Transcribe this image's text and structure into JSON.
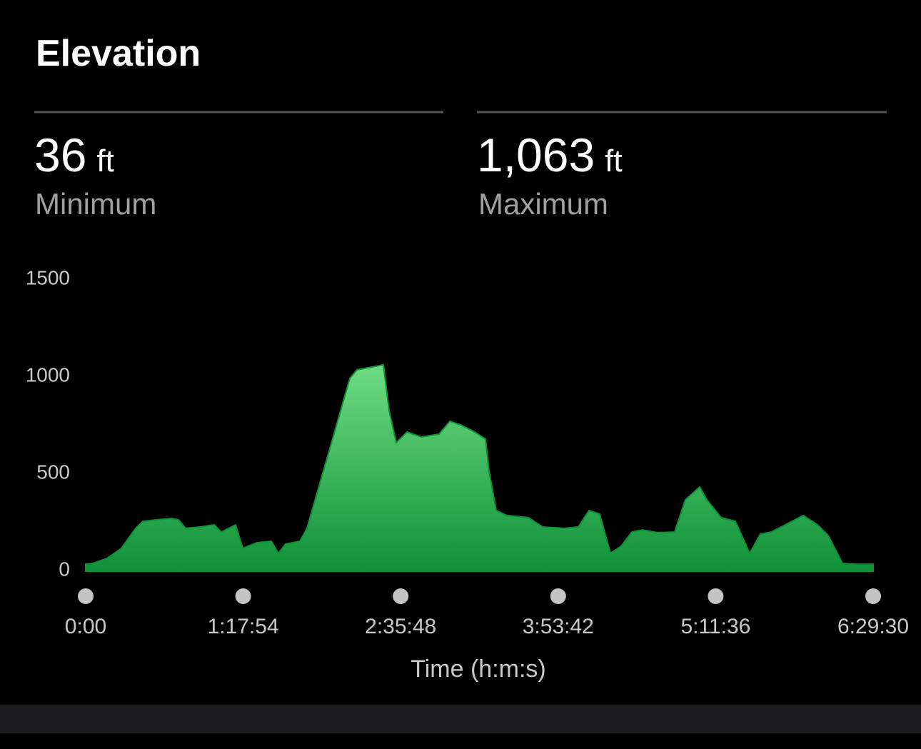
{
  "header": {
    "title": "Elevation"
  },
  "stats": [
    {
      "value": "36",
      "unit": "ft",
      "label": "Minimum"
    },
    {
      "value": "1,063",
      "unit": "ft",
      "label": "Maximum"
    }
  ],
  "chart_data": {
    "type": "area",
    "x_label": "Time (h:m:s)",
    "color_top": "#6fdc82",
    "color_bottom": "#0f9139",
    "x": [
      0,
      212,
      636,
      1059,
      1483,
      1695,
      2119,
      2543,
      2754,
      2966,
      3390,
      3814,
      4026,
      4449,
      4661,
      5085,
      5509,
      5721,
      5933,
      6356,
      6568,
      6992,
      7416,
      7840,
      8051,
      8835,
      9005,
      9217,
      9535,
      9958,
      10488,
      10806,
      11124,
      11547,
      11865,
      11971,
      12183,
      12501,
      13137,
      13560,
      14196,
      14620,
      14938,
      15255,
      15573,
      15891,
      16209,
      16527,
      16950,
      17480,
      17798,
      18222,
      18434,
      18857,
      19281,
      19705,
      20023,
      20340,
      20764,
      21294,
      21718,
      22036,
      22459,
      22883,
      23370
    ],
    "values": [
      36,
      40,
      66,
      118,
      221,
      257,
      265,
      272,
      265,
      221,
      228,
      239,
      202,
      239,
      118,
      147,
      154,
      92,
      140,
      154,
      221,
      478,
      735,
      993,
      1037,
      1063,
      827,
      662,
      717,
      691,
      706,
      772,
      754,
      717,
      680,
      515,
      313,
      287,
      276,
      228,
      221,
      228,
      313,
      294,
      92,
      129,
      202,
      213,
      199,
      202,
      368,
      434,
      368,
      276,
      257,
      92,
      191,
      202,
      239,
      287,
      239,
      184,
      40,
      36,
      36
    ],
    "xlim": [
      0,
      23370
    ],
    "xticks": [
      {
        "value": 0,
        "label": "0:00"
      },
      {
        "value": 4674,
        "label": "1:17:54"
      },
      {
        "value": 9348,
        "label": "2:35:48"
      },
      {
        "value": 14022,
        "label": "3:53:42"
      },
      {
        "value": 18696,
        "label": "5:11:36"
      },
      {
        "value": 23370,
        "label": "6:29:30"
      }
    ],
    "ylim": [
      0,
      1500
    ],
    "yticks": [
      0,
      500,
      1000,
      1500
    ]
  }
}
